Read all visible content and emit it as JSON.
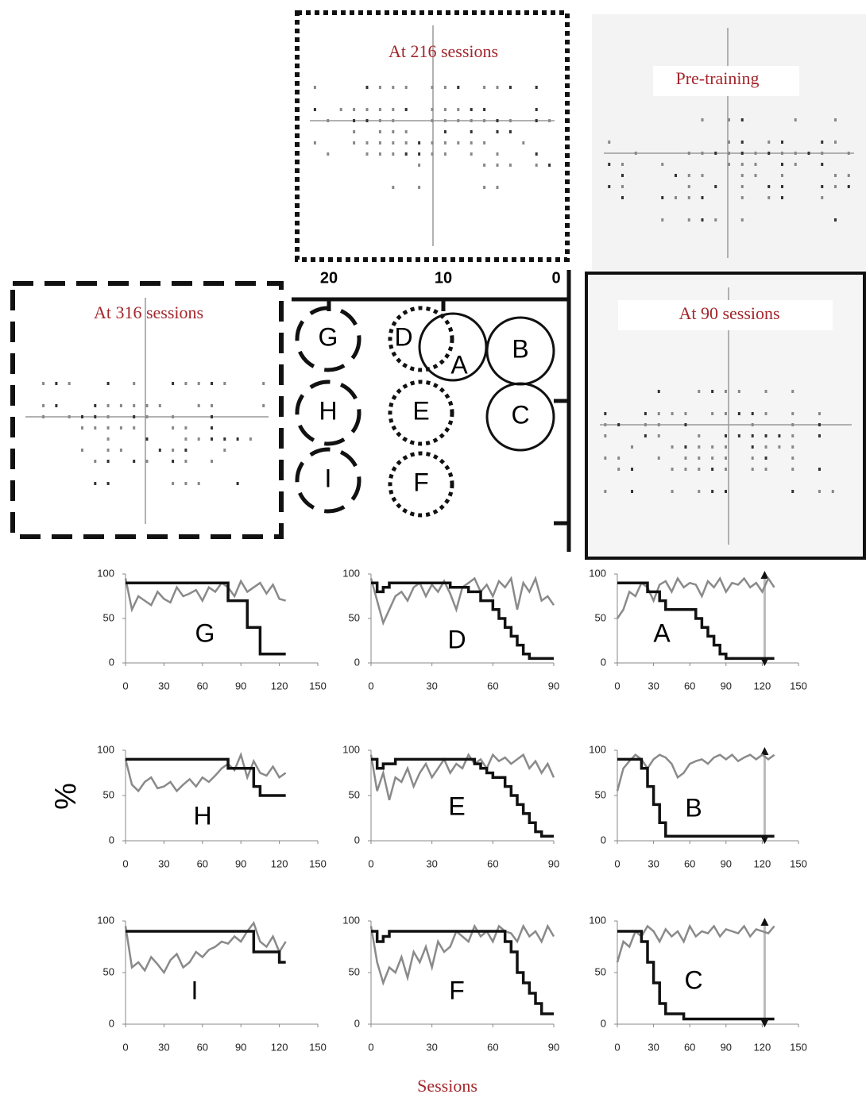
{
  "panels": [
    {
      "title": "At 216 sessions"
    },
    {
      "title": "Pre-training"
    },
    {
      "title": "At 316 sessions"
    },
    {
      "title": "At 90 sessions"
    }
  ],
  "diagram": {
    "ticks": [
      20,
      10,
      0
    ],
    "circles": [
      "G",
      "D",
      "A",
      "B",
      "H",
      "E",
      "C",
      "I",
      "F"
    ]
  },
  "y_label": "%",
  "x_label": "Sessions",
  "chart_data": [
    {
      "type": "line",
      "label": "G",
      "x": [
        0,
        5,
        10,
        15,
        20,
        25,
        30,
        35,
        40,
        45,
        50,
        55,
        60,
        65,
        70,
        75,
        80,
        85,
        90,
        95,
        100,
        105,
        110,
        115,
        120,
        125
      ],
      "series": [
        {
          "color": "#111111",
          "step": true,
          "values": [
            90,
            90,
            90,
            90,
            90,
            90,
            90,
            90,
            90,
            90,
            90,
            90,
            90,
            90,
            90,
            90,
            70,
            70,
            70,
            40,
            40,
            10,
            10,
            10,
            10,
            10
          ]
        },
        {
          "color": "#8a8a8a",
          "values": [
            95,
            60,
            75,
            70,
            65,
            80,
            72,
            68,
            85,
            75,
            78,
            82,
            70,
            85,
            80,
            90,
            85,
            75,
            92,
            80,
            85,
            90,
            78,
            88,
            72,
            70
          ]
        }
      ],
      "xlim": [
        0,
        150
      ],
      "ylim": [
        0,
        100
      ],
      "xticks": [
        0,
        30,
        60,
        90,
        120,
        150
      ],
      "yticks": [
        0,
        50,
        100
      ]
    },
    {
      "type": "line",
      "label": "D",
      "x": [
        0,
        3,
        6,
        9,
        12,
        15,
        18,
        21,
        24,
        27,
        30,
        33,
        36,
        39,
        42,
        45,
        48,
        51,
        54,
        57,
        60,
        63,
        66,
        69,
        72,
        75,
        78,
        81,
        84,
        87,
        90
      ],
      "series": [
        {
          "color": "#111111",
          "step": true,
          "values": [
            90,
            80,
            85,
            90,
            90,
            90,
            90,
            90,
            90,
            90,
            90,
            90,
            90,
            85,
            85,
            85,
            80,
            80,
            70,
            70,
            60,
            50,
            40,
            30,
            20,
            10,
            5,
            5,
            5,
            5,
            5
          ]
        },
        {
          "color": "#8a8a8a",
          "values": [
            95,
            70,
            45,
            60,
            75,
            80,
            70,
            85,
            90,
            75,
            88,
            80,
            92,
            78,
            60,
            85,
            90,
            95,
            80,
            88,
            75,
            92,
            85,
            95,
            60,
            90,
            80,
            95,
            70,
            75,
            65
          ]
        }
      ],
      "xlim": [
        0,
        90
      ],
      "ylim": [
        0,
        100
      ],
      "xticks": [
        0,
        30,
        60,
        90
      ],
      "yticks": [
        0,
        50,
        100
      ]
    },
    {
      "type": "line",
      "label": "A",
      "x": [
        0,
        5,
        10,
        15,
        20,
        25,
        30,
        35,
        40,
        45,
        50,
        55,
        60,
        65,
        70,
        75,
        80,
        85,
        90,
        95,
        100,
        105,
        110,
        115,
        120,
        125,
        130
      ],
      "series": [
        {
          "color": "#111111",
          "step": true,
          "values": [
            90,
            90,
            90,
            90,
            90,
            80,
            80,
            70,
            60,
            60,
            60,
            60,
            60,
            50,
            40,
            30,
            20,
            10,
            5,
            5,
            5,
            5,
            5,
            5,
            5,
            5,
            5
          ]
        },
        {
          "color": "#8a8a8a",
          "values": [
            50,
            60,
            80,
            75,
            90,
            85,
            70,
            88,
            92,
            80,
            95,
            85,
            90,
            88,
            75,
            92,
            85,
            95,
            80,
            90,
            88,
            95,
            85,
            90,
            80,
            95,
            85
          ]
        }
      ],
      "xlim": [
        0,
        150
      ],
      "ylim": [
        0,
        100
      ],
      "xticks": [
        0,
        30,
        60,
        90,
        120,
        150
      ],
      "yticks": [
        0,
        50,
        100
      ],
      "vline": 122
    },
    {
      "type": "line",
      "label": "H",
      "x": [
        0,
        5,
        10,
        15,
        20,
        25,
        30,
        35,
        40,
        45,
        50,
        55,
        60,
        65,
        70,
        75,
        80,
        85,
        90,
        95,
        100,
        105,
        110,
        115,
        120,
        125
      ],
      "series": [
        {
          "color": "#111111",
          "step": true,
          "values": [
            90,
            90,
            90,
            90,
            90,
            90,
            90,
            90,
            90,
            90,
            90,
            90,
            90,
            90,
            90,
            90,
            80,
            80,
            80,
            80,
            60,
            50,
            50,
            50,
            50,
            50
          ]
        },
        {
          "color": "#8a8a8a",
          "values": [
            90,
            62,
            55,
            65,
            70,
            58,
            60,
            65,
            55,
            62,
            68,
            60,
            70,
            65,
            72,
            80,
            85,
            78,
            95,
            70,
            88,
            75,
            72,
            82,
            70,
            75
          ]
        }
      ],
      "xlim": [
        0,
        150
      ],
      "ylim": [
        0,
        100
      ],
      "xticks": [
        0,
        30,
        60,
        90,
        120,
        150
      ],
      "yticks": [
        0,
        50,
        100
      ]
    },
    {
      "type": "line",
      "label": "E",
      "x": [
        0,
        3,
        6,
        9,
        12,
        15,
        18,
        21,
        24,
        27,
        30,
        33,
        36,
        39,
        42,
        45,
        48,
        51,
        54,
        57,
        60,
        63,
        66,
        69,
        72,
        75,
        78,
        81,
        84,
        87,
        90
      ],
      "series": [
        {
          "color": "#111111",
          "step": true,
          "values": [
            90,
            80,
            85,
            85,
            90,
            90,
            90,
            90,
            90,
            90,
            90,
            90,
            90,
            90,
            90,
            90,
            90,
            85,
            80,
            75,
            70,
            70,
            60,
            50,
            40,
            30,
            20,
            10,
            5,
            5,
            5
          ]
        },
        {
          "color": "#8a8a8a",
          "values": [
            95,
            55,
            75,
            45,
            70,
            65,
            80,
            60,
            75,
            85,
            70,
            80,
            90,
            75,
            85,
            80,
            95,
            85,
            90,
            80,
            95,
            88,
            92,
            85,
            90,
            95,
            80,
            88,
            75,
            85,
            70
          ]
        }
      ],
      "xlim": [
        0,
        90
      ],
      "ylim": [
        0,
        100
      ],
      "xticks": [
        0,
        30,
        60,
        90
      ],
      "yticks": [
        0,
        50,
        100
      ]
    },
    {
      "type": "line",
      "label": "B",
      "x": [
        0,
        5,
        10,
        15,
        20,
        25,
        30,
        35,
        40,
        45,
        50,
        55,
        60,
        65,
        70,
        75,
        80,
        85,
        90,
        95,
        100,
        105,
        110,
        115,
        120,
        125,
        130
      ],
      "series": [
        {
          "color": "#111111",
          "step": true,
          "values": [
            90,
            90,
            90,
            90,
            80,
            60,
            40,
            20,
            5,
            5,
            5,
            5,
            5,
            5,
            5,
            5,
            5,
            5,
            5,
            5,
            5,
            5,
            5,
            5,
            5,
            5,
            5
          ]
        },
        {
          "color": "#8a8a8a",
          "values": [
            55,
            80,
            88,
            95,
            90,
            80,
            90,
            95,
            92,
            85,
            70,
            75,
            85,
            88,
            90,
            85,
            92,
            95,
            90,
            95,
            88,
            92,
            95,
            90,
            95,
            90,
            95
          ]
        }
      ],
      "xlim": [
        0,
        150
      ],
      "ylim": [
        0,
        100
      ],
      "xticks": [
        0,
        30,
        60,
        90,
        120,
        150
      ],
      "yticks": [
        0,
        50,
        100
      ],
      "vline": 122
    },
    {
      "type": "line",
      "label": "I",
      "x": [
        0,
        5,
        10,
        15,
        20,
        25,
        30,
        35,
        40,
        45,
        50,
        55,
        60,
        65,
        70,
        75,
        80,
        85,
        90,
        95,
        100,
        105,
        110,
        115,
        120,
        125
      ],
      "series": [
        {
          "color": "#111111",
          "step": true,
          "values": [
            90,
            90,
            90,
            90,
            90,
            90,
            90,
            90,
            90,
            90,
            90,
            90,
            90,
            90,
            90,
            90,
            90,
            90,
            90,
            90,
            70,
            70,
            70,
            70,
            60,
            60
          ]
        },
        {
          "color": "#8a8a8a",
          "values": [
            95,
            55,
            60,
            52,
            65,
            58,
            50,
            62,
            68,
            55,
            60,
            70,
            65,
            72,
            75,
            80,
            78,
            85,
            80,
            90,
            98,
            80,
            75,
            85,
            70,
            80
          ]
        }
      ],
      "xlim": [
        0,
        150
      ],
      "ylim": [
        0,
        100
      ],
      "xticks": [
        0,
        30,
        60,
        90,
        120,
        150
      ],
      "yticks": [
        0,
        50,
        100
      ]
    },
    {
      "type": "line",
      "label": "F",
      "x": [
        0,
        3,
        6,
        9,
        12,
        15,
        18,
        21,
        24,
        27,
        30,
        33,
        36,
        39,
        42,
        45,
        48,
        51,
        54,
        57,
        60,
        63,
        66,
        69,
        72,
        75,
        78,
        81,
        84,
        87,
        90
      ],
      "series": [
        {
          "color": "#111111",
          "step": true,
          "values": [
            90,
            80,
            85,
            90,
            90,
            90,
            90,
            90,
            90,
            90,
            90,
            90,
            90,
            90,
            90,
            90,
            90,
            90,
            90,
            90,
            90,
            90,
            80,
            70,
            50,
            40,
            30,
            20,
            10,
            10,
            10
          ]
        },
        {
          "color": "#8a8a8a",
          "values": [
            95,
            60,
            40,
            55,
            50,
            65,
            45,
            70,
            60,
            75,
            55,
            80,
            70,
            75,
            90,
            85,
            80,
            95,
            85,
            90,
            80,
            95,
            90,
            88,
            80,
            95,
            85,
            90,
            80,
            95,
            85
          ]
        }
      ],
      "xlim": [
        0,
        90
      ],
      "ylim": [
        0,
        100
      ],
      "xticks": [
        0,
        30,
        60,
        90
      ],
      "yticks": [
        0,
        50,
        100
      ]
    },
    {
      "type": "line",
      "label": "C",
      "x": [
        0,
        5,
        10,
        15,
        20,
        25,
        30,
        35,
        40,
        45,
        50,
        55,
        60,
        65,
        70,
        75,
        80,
        85,
        90,
        95,
        100,
        105,
        110,
        115,
        120,
        125,
        130
      ],
      "series": [
        {
          "color": "#111111",
          "step": true,
          "values": [
            90,
            90,
            90,
            90,
            80,
            60,
            40,
            20,
            10,
            10,
            10,
            5,
            5,
            5,
            5,
            5,
            5,
            5,
            5,
            5,
            5,
            5,
            5,
            5,
            5,
            5,
            5
          ]
        },
        {
          "color": "#8a8a8a",
          "values": [
            60,
            80,
            75,
            90,
            85,
            95,
            90,
            80,
            92,
            85,
            90,
            80,
            95,
            85,
            90,
            88,
            95,
            85,
            92,
            90,
            88,
            95,
            85,
            92,
            90,
            88,
            95
          ]
        }
      ],
      "xlim": [
        0,
        150
      ],
      "ylim": [
        0,
        100
      ],
      "xticks": [
        0,
        30,
        60,
        90,
        120,
        150
      ],
      "yticks": [
        0,
        50,
        100
      ],
      "vline": 122
    }
  ]
}
